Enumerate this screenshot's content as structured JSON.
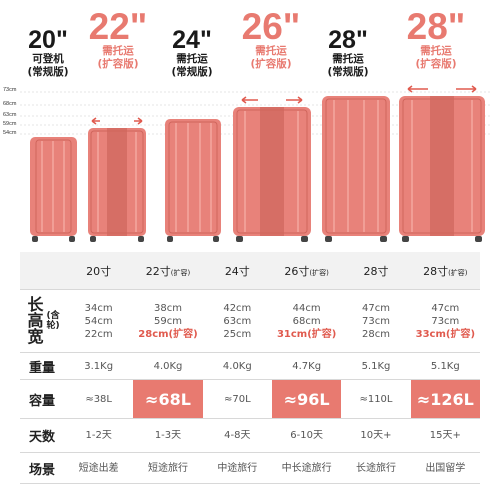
{
  "headers": [
    {
      "size": "20\"",
      "line1": "可登机",
      "line2": "(常规版)",
      "highlight": false
    },
    {
      "size": "22\"",
      "line1": "需托运",
      "line2": "(扩容版)",
      "highlight": true
    },
    {
      "size": "24\"",
      "line1": "需托运",
      "line2": "(常规版)",
      "highlight": false
    },
    {
      "size": "26\"",
      "line1": "需托运",
      "line2": "(扩容版)",
      "highlight": true
    },
    {
      "size": "28\"",
      "line1": "需托运",
      "line2": "(常规版)",
      "highlight": false
    },
    {
      "size": "28\"",
      "line1": "需托运",
      "line2": "(扩容版)",
      "highlight": true
    }
  ],
  "ruler_labels": [
    "73cm",
    "68cm",
    "63cm",
    "59cm",
    "54cm"
  ],
  "table": {
    "columns": [
      {
        "label": "20寸",
        "note": ""
      },
      {
        "label": "22寸",
        "note": "(扩容)"
      },
      {
        "label": "24寸",
        "note": ""
      },
      {
        "label": "26寸",
        "note": "(扩容)"
      },
      {
        "label": "28寸",
        "note": ""
      },
      {
        "label": "28寸",
        "note": "(扩容)"
      }
    ],
    "dims_header": {
      "main": "长高宽",
      "note": "(含轮)"
    },
    "dims": [
      {
        "l": "34cm",
        "h": "54cm",
        "w": "22cm",
        "hi": false
      },
      {
        "l": "38cm",
        "h": "59cm",
        "w": "28cm(扩容)",
        "hi": true
      },
      {
        "l": "42cm",
        "h": "63cm",
        "w": "25cm",
        "hi": false
      },
      {
        "l": "44cm",
        "h": "68cm",
        "w": "31cm(扩容)",
        "hi": true
      },
      {
        "l": "47cm",
        "h": "73cm",
        "w": "28cm",
        "hi": false
      },
      {
        "l": "47cm",
        "h": "73cm",
        "w": "33cm(扩容)",
        "hi": true
      }
    ],
    "weight_header": "重量",
    "weights": [
      "3.1Kg",
      "4.0Kg",
      "4.0Kg",
      "4.7Kg",
      "5.1Kg",
      "5.1Kg"
    ],
    "capacity_header": "容量",
    "capacities": [
      {
        "text": "≈38L",
        "hi": false
      },
      {
        "text": "≈68L",
        "hi": true
      },
      {
        "text": "≈70L",
        "hi": false
      },
      {
        "text": "≈96L",
        "hi": true
      },
      {
        "text": "≈110L",
        "hi": false
      },
      {
        "text": "≈126L",
        "hi": true
      }
    ],
    "days_header": "天数",
    "days": [
      "1-2天",
      "1-3天",
      "4-8天",
      "6-10天",
      "10天+",
      "15天+"
    ],
    "scene_header": "场景",
    "scenes": [
      "短途出差",
      "短途旅行",
      "中途旅行",
      "中长途旅行",
      "长途旅行",
      "出国留学"
    ]
  },
  "colors": {
    "accent": "#e87a70",
    "case": "#e8827a",
    "case_dark": "#d0655c",
    "wheel": "#444444"
  }
}
